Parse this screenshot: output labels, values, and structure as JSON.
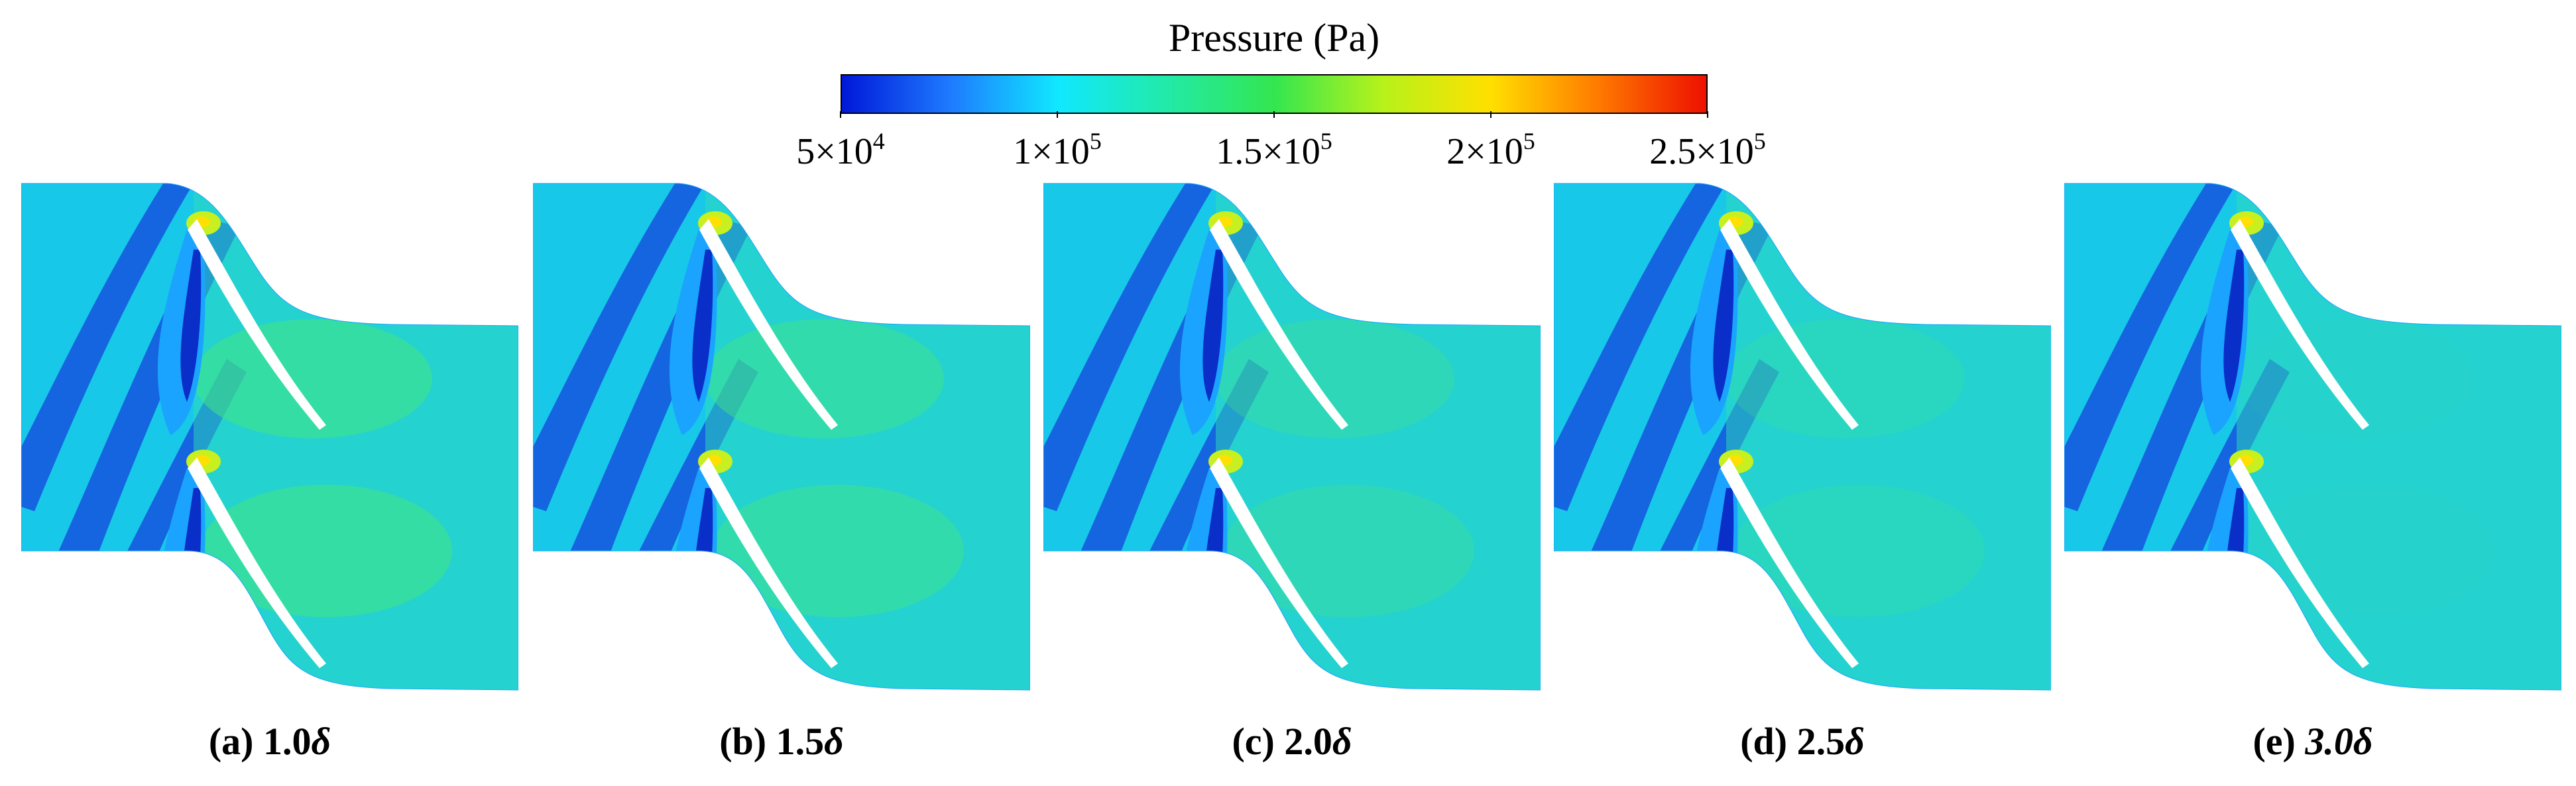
{
  "colorbar": {
    "title": "Pressure (Pa)",
    "min": 50000,
    "max": 250000,
    "colors": [
      "#0018d8",
      "#1e7aff",
      "#10e8ff",
      "#22eaa8",
      "#33e650",
      "#b6f21a",
      "#ffe000",
      "#ff7a00",
      "#ee1000"
    ],
    "ticks": [
      {
        "value": 50000,
        "mantissa": "5×10",
        "exponent": "4"
      },
      {
        "value": 100000,
        "mantissa": "1×10",
        "exponent": "5"
      },
      {
        "value": 150000,
        "mantissa": "1.5×10",
        "exponent": "5"
      },
      {
        "value": 200000,
        "mantissa": "2×10",
        "exponent": "5"
      },
      {
        "value": 250000,
        "mantissa": "2.5×10",
        "exponent": "5"
      }
    ]
  },
  "panels": [
    {
      "id": "a",
      "prefix": "(a) ",
      "number": "1.0",
      "symbol": "δ",
      "passages": 2
    },
    {
      "id": "b",
      "prefix": "(b) ",
      "number": "1.5",
      "symbol": "δ",
      "passages": 2
    },
    {
      "id": "c",
      "prefix": "(c) ",
      "number": "2.0",
      "symbol": "δ",
      "passages": 2
    },
    {
      "id": "d",
      "prefix": "(d) ",
      "number": "2.5",
      "symbol": "δ",
      "passages": 2
    },
    {
      "id": "e",
      "prefix": "(e) ",
      "number": "3.0",
      "symbol": "δ",
      "passages": 2
    }
  ],
  "field_colors": {
    "low": "#1565e0",
    "mid_low": "#1aa4ff",
    "base": "#18c8e8",
    "mid": "#2fdcb8",
    "high": "#42e680",
    "peak": "#c8f020",
    "blade": "#ffffff"
  }
}
